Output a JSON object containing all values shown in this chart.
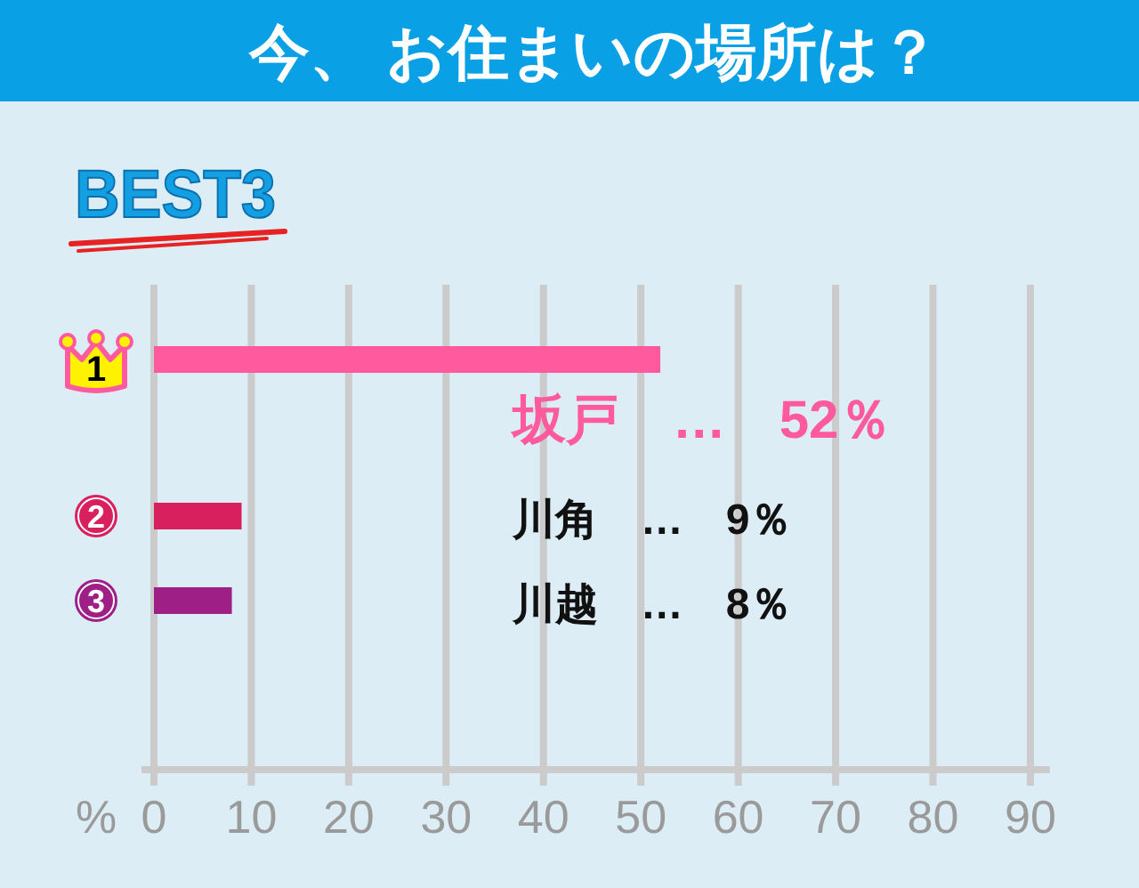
{
  "chart_data": {
    "type": "bar",
    "orientation": "horizontal",
    "title": "今、 お住まいの場所は？",
    "subtitle": "BEST3",
    "xlabel": "%",
    "categories": [
      "1",
      "2",
      "3"
    ],
    "values": [
      52,
      9,
      8
    ],
    "colors": [
      "#ff5a9e",
      "#d8205f",
      "#9e1f86"
    ],
    "annotations": [
      "坂戸　…　52％",
      "川角　…　9％",
      "川越　…　8％"
    ],
    "xlim": [
      0,
      92
    ],
    "xticks": [
      0,
      10,
      20,
      30,
      40,
      50,
      60,
      70,
      80,
      90
    ],
    "grid": "x"
  }
}
